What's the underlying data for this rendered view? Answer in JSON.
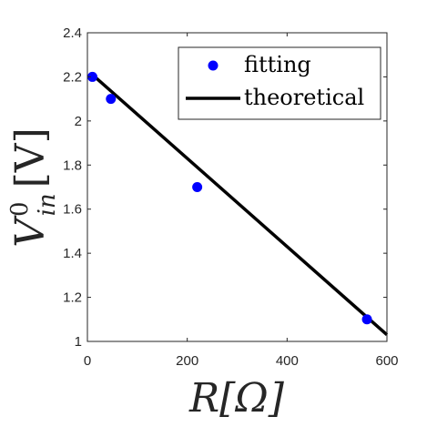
{
  "chart_data": {
    "type": "scatter",
    "xlabel": "R[Ω]",
    "ylabel": {
      "main": "V",
      "sup": "0",
      "sub": "in",
      "unit": "[V]"
    },
    "xlim": [
      0,
      600
    ],
    "ylim": [
      1,
      2.4
    ],
    "xticks": [
      0,
      200,
      400,
      600
    ],
    "yticks": [
      1,
      1.2,
      1.4,
      1.6,
      1.8,
      2,
      2.2,
      2.4
    ],
    "xtick_labels": [
      "0",
      "200",
      "400",
      "600"
    ],
    "ytick_labels": [
      "1",
      "1.2",
      "1.4",
      "1.6",
      "1.8",
      "2",
      "2.2",
      "2.4"
    ],
    "legend_position": "top-right",
    "grid": false,
    "series": [
      {
        "name": "fitting",
        "kind": "scatter",
        "color": "#0000ff",
        "x": [
          10,
          47,
          220,
          560
        ],
        "y": [
          2.2,
          2.1,
          1.7,
          1.1
        ]
      },
      {
        "name": "theoretical",
        "kind": "line",
        "color": "#000000",
        "x": [
          10,
          600
        ],
        "y": [
          2.21,
          1.03
        ]
      }
    ]
  }
}
